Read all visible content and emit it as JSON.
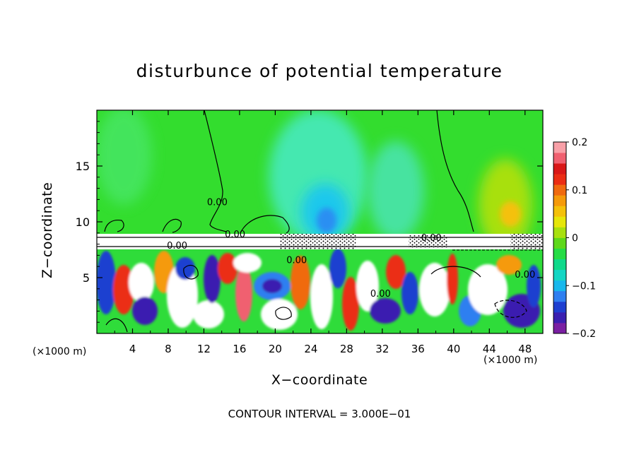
{
  "chart_data": {
    "type": "heatmap",
    "title": "disturbunce of potential temperature",
    "xlabel": "X−coordinate",
    "ylabel": "Z−coordinate",
    "x_unit_label": "(×1000 m)",
    "z_unit_label": "(×1000 m)",
    "x_range": [
      0,
      50
    ],
    "z_range": [
      0,
      20
    ],
    "x_ticks": [
      4,
      8,
      12,
      16,
      20,
      24,
      28,
      32,
      36,
      40,
      44,
      48
    ],
    "x_tick_labels": [
      "4",
      "8",
      "12",
      "16",
      "20",
      "24",
      "28",
      "32",
      "36",
      "40",
      "44",
      "48"
    ],
    "z_ticks": [
      5,
      10,
      15
    ],
    "z_tick_labels": [
      "5",
      "10",
      "15"
    ],
    "colorbar": {
      "range": [
        -0.2,
        0.2
      ],
      "ticks": [
        -0.2,
        -0.1,
        0,
        0.1,
        0.2
      ],
      "tick_labels": [
        "−0.2",
        "−0.1",
        "0",
        "0.1",
        "0.2"
      ],
      "colors": [
        "#7a1fa2",
        "#3a1fb0",
        "#1f3fd0",
        "#2f7ff0",
        "#18b8ec",
        "#14d6c4",
        "#0fd98a",
        "#25dc45",
        "#5ed81a",
        "#a8e00f",
        "#e6e60a",
        "#f4c10a",
        "#f59a0a",
        "#f06a0f",
        "#eb2d14",
        "#d91818",
        "#f06070",
        "#f8a0a8"
      ]
    },
    "contour_labels": [
      {
        "text": "0.00",
        "x": 13.5,
        "z": 11.5
      },
      {
        "text": "0.00",
        "x": 15.5,
        "z": 8.6
      },
      {
        "text": "0.00",
        "x": 9.0,
        "z": 7.6
      },
      {
        "text": "0.00",
        "x": 22.4,
        "z": 6.3
      },
      {
        "text": "0.00",
        "x": 31.8,
        "z": 3.3
      },
      {
        "text": "0.00",
        "x": 37.5,
        "z": 8.3
      },
      {
        "text": "0.00",
        "x": 48.0,
        "z": 5.0
      }
    ],
    "contour_interval_text": "CONTOUR INTERVAL = 3.000E−01"
  }
}
